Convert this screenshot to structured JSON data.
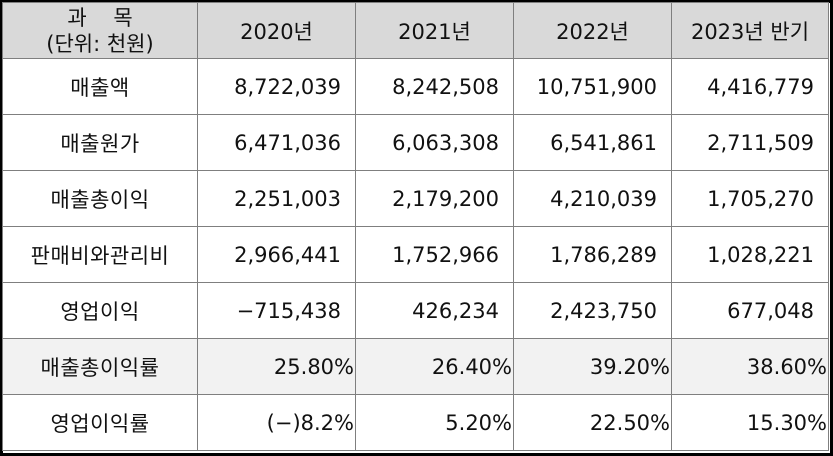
{
  "header": {
    "col0_line1": "과    목",
    "col0_line2": "(단위: 천원)",
    "years": [
      "2020년",
      "2021년",
      "2022년",
      "2023년 반기"
    ]
  },
  "rows": [
    {
      "label": "매출액",
      "values": [
        "8,722,039",
        "8,242,508",
        "10,751,900",
        "4,416,779"
      ]
    },
    {
      "label": "매출원가",
      "values": [
        "6,471,036",
        "6,063,308",
        "6,541,861",
        "2,711,509"
      ]
    },
    {
      "label": "매출총이익",
      "values": [
        "2,251,003",
        "2,179,200",
        "4,210,039",
        "1,705,270"
      ]
    },
    {
      "label": "판매비와관리비",
      "values": [
        "2,966,441",
        "1,752,966",
        "1,786,289",
        "1,028,221"
      ]
    },
    {
      "label": "영업이익",
      "values": [
        "−715,438",
        "426,234",
        "2,423,750",
        "677,048"
      ]
    }
  ],
  "ratio_rows": [
    {
      "label": "매출총이익률",
      "values": [
        "25.80%",
        "26.40%",
        "39.20%",
        "38.60%"
      ]
    },
    {
      "label": "영업이익률",
      "values": [
        "(−)8.2%",
        "5.20%",
        "22.50%",
        "15.30%"
      ]
    }
  ],
  "colors": {
    "header_bg": "#d9d9d9",
    "negative": "#e0322e",
    "border": "#7f7f7f"
  }
}
